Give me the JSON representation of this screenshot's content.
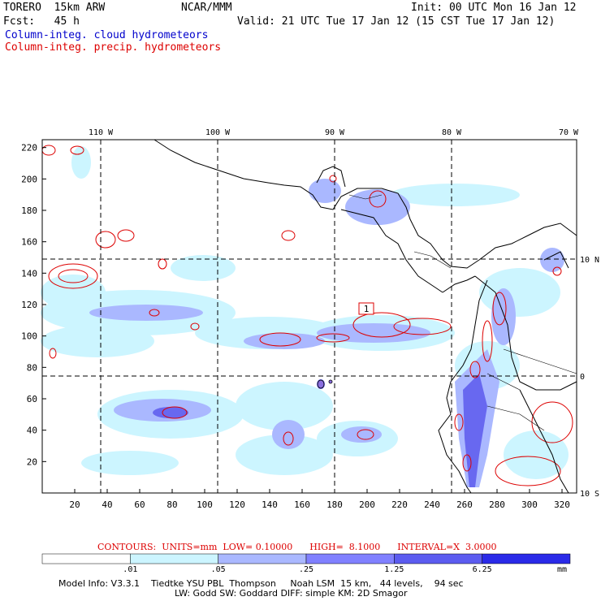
{
  "header": {
    "model_name": "TORERO  15km ARW",
    "org": "NCAR/MMM",
    "init": "Init: 00 UTC Mon 16 Jan 12",
    "fcst": "Fcst:   45 h",
    "valid": "Valid: 21 UTC Tue 17 Jan 12 (15 CST Tue 17 Jan 12)",
    "field_blue": "Column-integ. cloud hydrometeors",
    "field_red": "Column-integ. precip. hydrometeors"
  },
  "map": {
    "lon_labels": [
      "110 W",
      "100 W",
      "90 W",
      "80 W",
      "70 W"
    ],
    "lat_labels": [
      "10 N",
      "0",
      "10 S"
    ],
    "x_ticks": [
      "20",
      "40",
      "60",
      "80",
      "100",
      "120",
      "140",
      "160",
      "180",
      "200",
      "220",
      "240",
      "260",
      "280",
      "300",
      "320"
    ],
    "y_ticks": [
      "20",
      "40",
      "60",
      "80",
      "100",
      "120",
      "140",
      "160",
      "180",
      "200",
      "220"
    ],
    "box_label": "1"
  },
  "contours": {
    "label": "CONTOURS:",
    "units": "UNITS=mm",
    "low": "LOW= 0.10000",
    "high": "HIGH=  8.1000",
    "interval": "INTERVAL=X  3.0000"
  },
  "colorbar": {
    "ticks": [
      ".01",
      ".05",
      ".25",
      "1.25",
      "6.25"
    ],
    "unit": "mm",
    "colors": [
      "#ffffff",
      "#ccf5ff",
      "#aab8ff",
      "#8080ff",
      "#5c5cf0",
      "#2a2ae8"
    ]
  },
  "model_info": {
    "line1": "Model Info: V3.3.1    Tiedtke YSU PBL  Thompson     Noah LSM  15 km,   44 levels,    94 sec",
    "line2": "LW: Godd SW: Goddard DIFF: simple KM: 2D Smagor"
  }
}
